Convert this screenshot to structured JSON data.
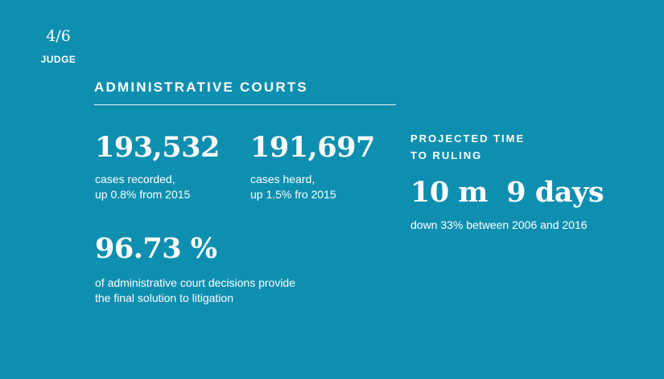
{
  "page_indicator": "4/6",
  "section_label": "JUDGE",
  "heading": "ADMINISTRATIVE COURTS",
  "stats": [
    {
      "value": "193,532",
      "desc_line1": "cases recorded,",
      "desc_line2": "up 0.8% from 2015"
    },
    {
      "value": "191,697",
      "desc_line1": "cases heard,",
      "desc_line2": "up 1.5% fro 2015"
    },
    {
      "value": "96.73 %",
      "desc_line1": "of administrative court decisions provide",
      "desc_line2": "the final solution to litigation"
    }
  ],
  "projected": {
    "label_line1": "PROJECTED TIME",
    "label_line2": "TO RULING",
    "value": "10 m  9 days",
    "desc": "down 33% between 2006 and 2016"
  }
}
